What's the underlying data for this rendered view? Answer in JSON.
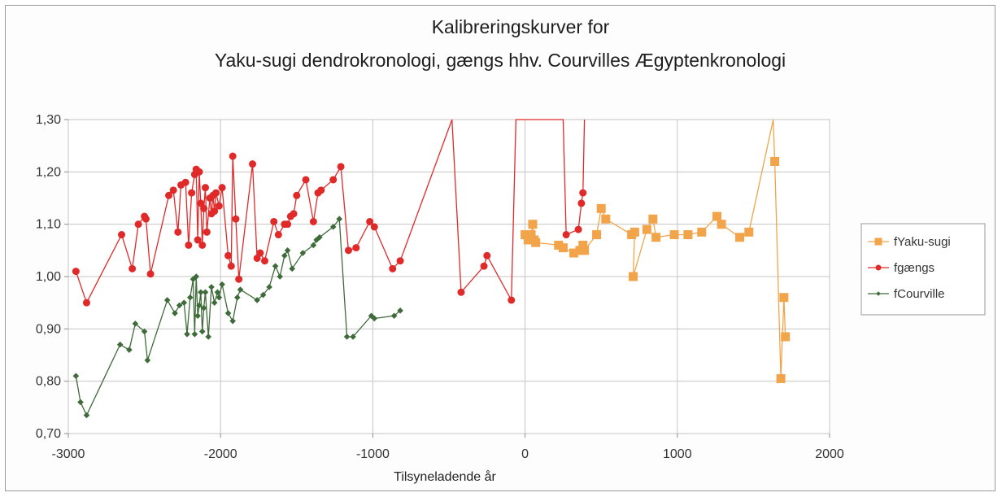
{
  "chart_data": {
    "type": "line",
    "title": [
      "Kalibreringskurver for",
      "Yaku-sugi dendrokronologi, gængs hhv. Courvilles Ægyptenkronologi"
    ],
    "xlabel": "Tilsyneladende år",
    "ylabel": "",
    "xlim": [
      -3000,
      2000
    ],
    "ylim": [
      0.7,
      1.3
    ],
    "x_ticks": [
      -3000,
      -2000,
      -1000,
      0,
      1000,
      2000
    ],
    "x_tick_labels": [
      "-3000",
      "-2000",
      "-1000",
      "0",
      "1000",
      "2000"
    ],
    "y_ticks": [
      0.7,
      0.8,
      0.9,
      1.0,
      1.1,
      1.2,
      1.3
    ],
    "y_tick_labels": [
      "0,70",
      "0,80",
      "0,90",
      "1,00",
      "1,10",
      "1,20",
      "1,30"
    ],
    "grid": true,
    "legend_position": "right",
    "series": [
      {
        "name": "fYaku-sugi",
        "color": "#f2a44a",
        "marker": "square",
        "points": [
          [
            0,
            1.08
          ],
          [
            20,
            1.07
          ],
          [
            40,
            1.08
          ],
          [
            50,
            1.1
          ],
          [
            60,
            1.07
          ],
          [
            70,
            1.065
          ],
          [
            220,
            1.06
          ],
          [
            250,
            1.055
          ],
          [
            320,
            1.045
          ],
          [
            360,
            1.05
          ],
          [
            380,
            1.06
          ],
          [
            390,
            1.05
          ],
          [
            470,
            1.08
          ],
          [
            500,
            1.13
          ],
          [
            530,
            1.11
          ],
          [
            700,
            1.08
          ],
          [
            720,
            1.085
          ],
          [
            710,
            1.0
          ],
          [
            800,
            1.09
          ],
          [
            840,
            1.11
          ],
          [
            860,
            1.075
          ],
          [
            980,
            1.08
          ],
          [
            1070,
            1.08
          ],
          [
            1160,
            1.085
          ],
          [
            1260,
            1.115
          ],
          [
            1290,
            1.1
          ],
          [
            1410,
            1.075
          ],
          [
            1470,
            1.085
          ],
          [
            1630,
            1.3
          ],
          [
            1640,
            1.22
          ],
          [
            1680,
            0.805
          ],
          [
            1700,
            0.96
          ],
          [
            1710,
            0.885
          ]
        ]
      },
      {
        "name": "fgængs",
        "color": "#e02a2a",
        "marker": "circle",
        "points": [
          [
            -2950,
            1.01
          ],
          [
            -2880,
            0.95
          ],
          [
            -2650,
            1.08
          ],
          [
            -2580,
            1.015
          ],
          [
            -2540,
            1.1
          ],
          [
            -2500,
            1.115
          ],
          [
            -2490,
            1.11
          ],
          [
            -2460,
            1.005
          ],
          [
            -2340,
            1.155
          ],
          [
            -2310,
            1.165
          ],
          [
            -2280,
            1.085
          ],
          [
            -2260,
            1.175
          ],
          [
            -2230,
            1.18
          ],
          [
            -2210,
            1.06
          ],
          [
            -2190,
            1.16
          ],
          [
            -2170,
            1.195
          ],
          [
            -2160,
            1.205
          ],
          [
            -2150,
            1.07
          ],
          [
            -2140,
            1.2
          ],
          [
            -2130,
            1.14
          ],
          [
            -2120,
            1.06
          ],
          [
            -2110,
            1.13
          ],
          [
            -2100,
            1.17
          ],
          [
            -2090,
            1.085
          ],
          [
            -2070,
            1.15
          ],
          [
            -2060,
            1.12
          ],
          [
            -2050,
            1.155
          ],
          [
            -2040,
            1.125
          ],
          [
            -2030,
            1.16
          ],
          [
            -2010,
            1.135
          ],
          [
            -1990,
            1.17
          ],
          [
            -1950,
            1.04
          ],
          [
            -1930,
            1.02
          ],
          [
            -1920,
            1.23
          ],
          [
            -1900,
            1.11
          ],
          [
            -1880,
            0.995
          ],
          [
            -1790,
            1.215
          ],
          [
            -1760,
            1.035
          ],
          [
            -1740,
            1.045
          ],
          [
            -1710,
            1.03
          ],
          [
            -1650,
            1.105
          ],
          [
            -1620,
            1.08
          ],
          [
            -1580,
            1.1
          ],
          [
            -1560,
            1.1
          ],
          [
            -1540,
            1.115
          ],
          [
            -1520,
            1.12
          ],
          [
            -1500,
            1.155
          ],
          [
            -1440,
            1.185
          ],
          [
            -1390,
            1.105
          ],
          [
            -1360,
            1.16
          ],
          [
            -1340,
            1.165
          ],
          [
            -1260,
            1.185
          ],
          [
            -1210,
            1.21
          ],
          [
            -1160,
            1.05
          ],
          [
            -1110,
            1.055
          ],
          [
            -1020,
            1.105
          ],
          [
            -990,
            1.095
          ],
          [
            -870,
            1.015
          ],
          [
            -820,
            1.03
          ],
          [
            -480,
            1.3
          ],
          [
            -420,
            0.97
          ],
          [
            -270,
            1.02
          ],
          [
            -250,
            1.04
          ],
          [
            -90,
            0.955
          ],
          [
            -60,
            1.3
          ],
          [
            250,
            1.3
          ],
          [
            270,
            1.08
          ],
          [
            350,
            1.09
          ],
          [
            370,
            1.14
          ],
          [
            380,
            1.16
          ],
          [
            390,
            1.3
          ]
        ]
      },
      {
        "name": "fCourville",
        "color": "#3f6b3a",
        "marker": "diamond",
        "points": [
          [
            -2950,
            0.81
          ],
          [
            -2920,
            0.76
          ],
          [
            -2880,
            0.735
          ],
          [
            -2660,
            0.87
          ],
          [
            -2600,
            0.86
          ],
          [
            -2560,
            0.91
          ],
          [
            -2500,
            0.895
          ],
          [
            -2480,
            0.84
          ],
          [
            -2350,
            0.955
          ],
          [
            -2300,
            0.93
          ],
          [
            -2270,
            0.945
          ],
          [
            -2240,
            0.95
          ],
          [
            -2220,
            0.89
          ],
          [
            -2200,
            0.96
          ],
          [
            -2180,
            0.995
          ],
          [
            -2170,
            0.89
          ],
          [
            -2160,
            1.0
          ],
          [
            -2150,
            0.925
          ],
          [
            -2140,
            0.945
          ],
          [
            -2130,
            0.97
          ],
          [
            -2120,
            0.895
          ],
          [
            -2110,
            0.94
          ],
          [
            -2100,
            0.97
          ],
          [
            -2080,
            0.885
          ],
          [
            -2060,
            0.98
          ],
          [
            -2040,
            0.95
          ],
          [
            -2020,
            0.97
          ],
          [
            -2010,
            0.96
          ],
          [
            -1990,
            0.985
          ],
          [
            -1950,
            0.93
          ],
          [
            -1920,
            0.915
          ],
          [
            -1890,
            0.96
          ],
          [
            -1870,
            0.975
          ],
          [
            -1760,
            0.955
          ],
          [
            -1720,
            0.965
          ],
          [
            -1680,
            0.98
          ],
          [
            -1640,
            1.02
          ],
          [
            -1610,
            1.0
          ],
          [
            -1580,
            1.04
          ],
          [
            -1560,
            1.05
          ],
          [
            -1530,
            1.015
          ],
          [
            -1460,
            1.045
          ],
          [
            -1390,
            1.06
          ],
          [
            -1370,
            1.07
          ],
          [
            -1350,
            1.075
          ],
          [
            -1260,
            1.095
          ],
          [
            -1220,
            1.11
          ],
          [
            -1170,
            0.885
          ],
          [
            -1130,
            0.885
          ],
          [
            -1010,
            0.925
          ],
          [
            -990,
            0.92
          ],
          [
            -860,
            0.925
          ],
          [
            -820,
            0.935
          ]
        ]
      }
    ]
  }
}
